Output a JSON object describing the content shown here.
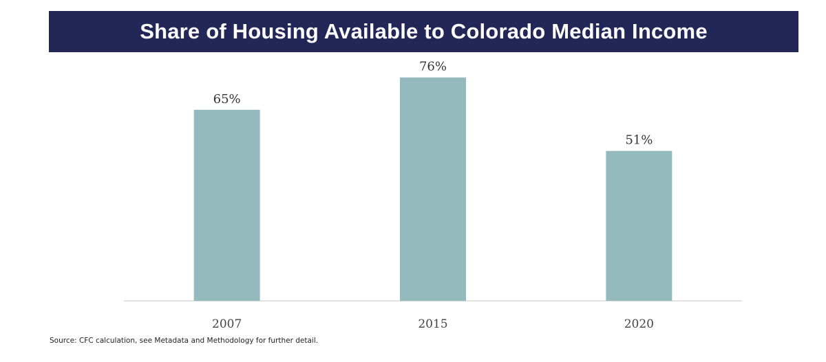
{
  "chart_data": {
    "type": "bar",
    "title": "Share of Housing Available to Colorado Median Income",
    "categories": [
      "2007",
      "2015",
      "2020"
    ],
    "values": [
      65,
      76,
      51
    ],
    "data_labels": [
      "65%",
      "76%",
      "51%"
    ],
    "unit": "%",
    "xlabel": "",
    "ylabel": "",
    "ylim": [
      0,
      100
    ],
    "grid": false,
    "legend": "none",
    "bar_color": "#94babe",
    "title_background": "#232758",
    "source": "Source: CFC calculation, see Metadata and Methodology for further detail."
  }
}
